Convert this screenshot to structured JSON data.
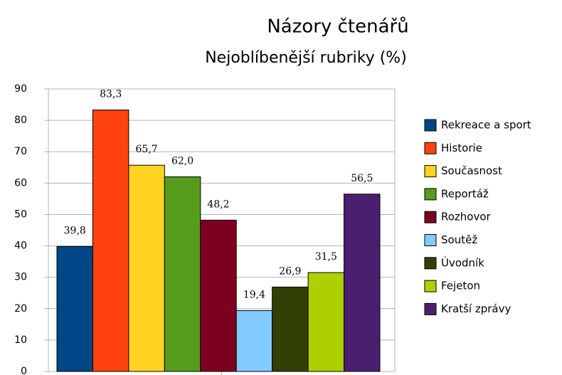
{
  "chart_data": {
    "type": "bar",
    "title": "Názory čtenářů",
    "subtitle": "Nejoblíbenější rubriky (%)",
    "categories": [
      null
    ],
    "series": [
      {
        "name": "Rekreace a sport",
        "color": "#004586",
        "values": [
          39.8
        ],
        "value_labels": [
          "39,8"
        ]
      },
      {
        "name": "Historie",
        "color": "#ff420e",
        "values": [
          83.3
        ],
        "value_labels": [
          "83,3"
        ]
      },
      {
        "name": "Současnost",
        "color": "#ffd320",
        "values": [
          65.7
        ],
        "value_labels": [
          "65,7"
        ]
      },
      {
        "name": "Reportáž",
        "color": "#579d1c",
        "values": [
          62.0
        ],
        "value_labels": [
          "62,0"
        ]
      },
      {
        "name": "Rozhovor",
        "color": "#7e0021",
        "values": [
          48.2
        ],
        "value_labels": [
          "48,2"
        ]
      },
      {
        "name": "Soutěž",
        "color": "#83caff",
        "values": [
          19.4
        ],
        "value_labels": [
          "19,4"
        ]
      },
      {
        "name": "Úvodník",
        "color": "#314004",
        "values": [
          26.9
        ],
        "value_labels": [
          "26,9"
        ]
      },
      {
        "name": "Fejeton",
        "color": "#aecf00",
        "values": [
          31.5
        ],
        "value_labels": [
          "31,5"
        ]
      },
      {
        "name": "Kratší zprávy",
        "color": "#4b1f6f",
        "values": [
          56.5
        ],
        "value_labels": [
          "56,5"
        ]
      }
    ],
    "ylim": [
      0,
      90
    ],
    "yticks": [
      0,
      10,
      20,
      30,
      40,
      50,
      60,
      70,
      80,
      90
    ],
    "grid": true,
    "legend": "right"
  }
}
